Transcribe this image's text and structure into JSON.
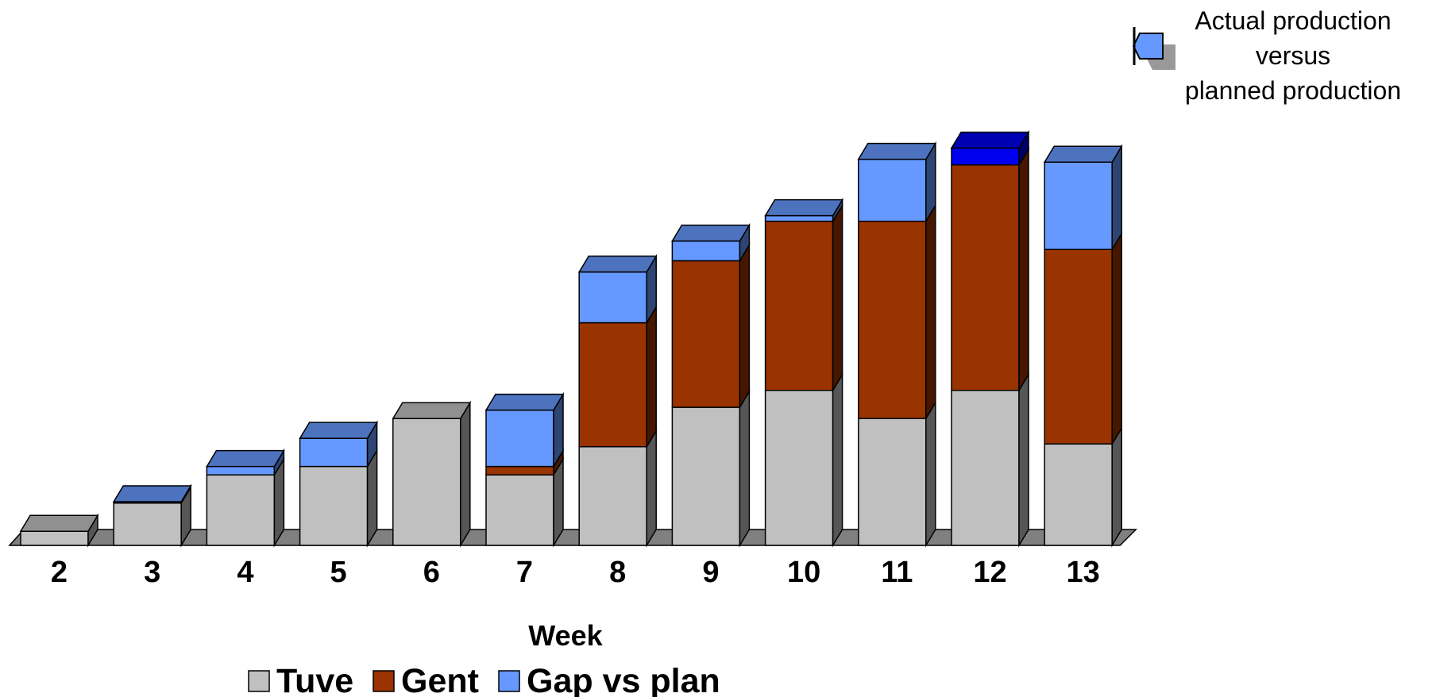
{
  "chart_data": {
    "type": "bar",
    "stacked": true,
    "three_d": true,
    "xlabel": "Week",
    "categories": [
      "2",
      "3",
      "4",
      "5",
      "6",
      "7",
      "8",
      "9",
      "10",
      "11",
      "12",
      "13"
    ],
    "series": [
      {
        "name": "Tuve",
        "color": "#c0c0c0",
        "values": [
          5,
          15,
          25,
          28,
          45,
          25,
          35,
          49,
          55,
          45,
          55,
          36
        ]
      },
      {
        "name": "Gent",
        "color": "#993300",
        "values": [
          0,
          0,
          0,
          0,
          0,
          3,
          44,
          52,
          60,
          70,
          80,
          69
        ]
      },
      {
        "name": "Gap vs plan",
        "color": "#6699ff",
        "values": [
          0,
          0.5,
          3,
          10,
          0,
          20,
          18,
          7,
          2,
          22,
          0,
          31
        ]
      }
    ],
    "overproduction": {
      "category": "12",
      "value": 6,
      "color": "#0000ee"
    },
    "legend_position": "bottom",
    "grid": false,
    "annotation": {
      "lines": [
        "Actual production",
        "versus",
        "planned production"
      ],
      "icon": "callout-arrow-icon"
    }
  }
}
